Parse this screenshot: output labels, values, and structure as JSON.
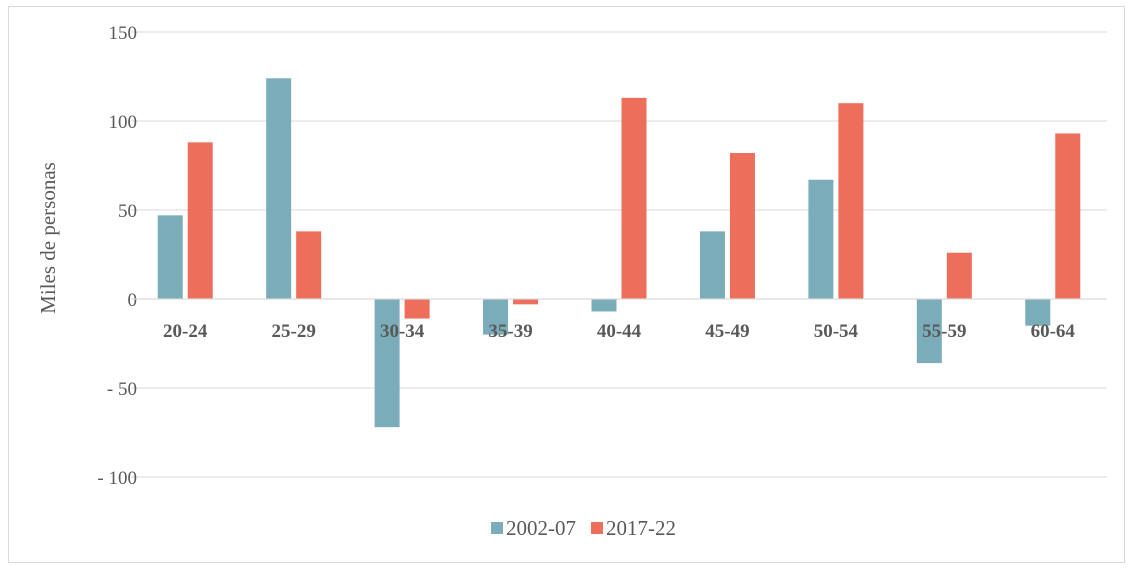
{
  "chart_data": {
    "type": "bar",
    "title": "",
    "xlabel": "",
    "ylabel": "Miles de personas",
    "ylim": [
      -100,
      150
    ],
    "yticks": [
      150,
      100,
      50,
      0,
      -50,
      -100
    ],
    "ytick_labels": [
      "150",
      "100",
      "50",
      "0",
      "-   50",
      "-   100"
    ],
    "grid": true,
    "legend_position": "bottom",
    "categories": [
      "20-24",
      "25-29",
      "30-34",
      "35-39",
      "40-44",
      "45-49",
      "50-54",
      "55-59",
      "60-64"
    ],
    "series": [
      {
        "name": "2002-07",
        "color": "#7AADB9",
        "values": [
          47,
          124,
          -72,
          -20,
          -7,
          38,
          67,
          -36,
          -15
        ]
      },
      {
        "name": "2017-22",
        "color": "#EE6E5C",
        "values": [
          88,
          38,
          -11,
          -3,
          113,
          82,
          110,
          26,
          93
        ]
      }
    ]
  }
}
